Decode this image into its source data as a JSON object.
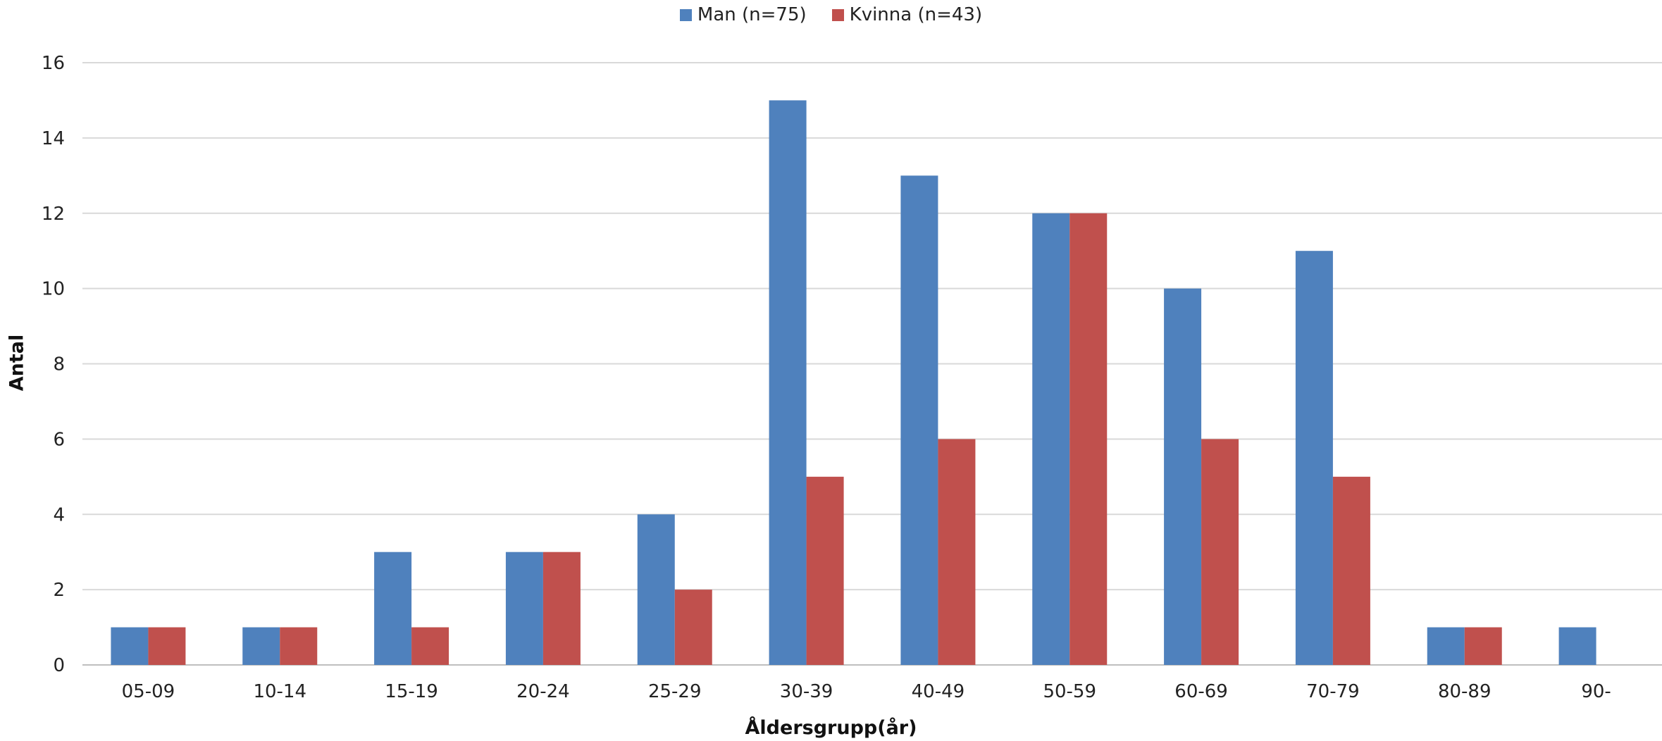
{
  "chart_data": {
    "type": "bar",
    "xlabel": "Åldersgrupp(år)",
    "ylabel": "Antal",
    "ylim": [
      0,
      16
    ],
    "yticks": [
      0,
      2,
      4,
      6,
      8,
      10,
      12,
      14,
      16
    ],
    "grid": true,
    "legend_position": "top",
    "categories": [
      "05-09",
      "10-14",
      "15-19",
      "20-24",
      "25-29",
      "30-39",
      "40-49",
      "50-59",
      "60-69",
      "70-79",
      "80-89",
      "90-"
    ],
    "series": [
      {
        "name": "Man (n=75)",
        "color": "#4F81BD",
        "values": [
          1,
          1,
          3,
          3,
          4,
          15,
          13,
          12,
          10,
          11,
          1,
          1
        ]
      },
      {
        "name": "Kvinna (n=43)",
        "color": "#C0504D",
        "values": [
          1,
          1,
          1,
          3,
          2,
          5,
          6,
          12,
          6,
          5,
          1,
          0
        ]
      }
    ]
  }
}
